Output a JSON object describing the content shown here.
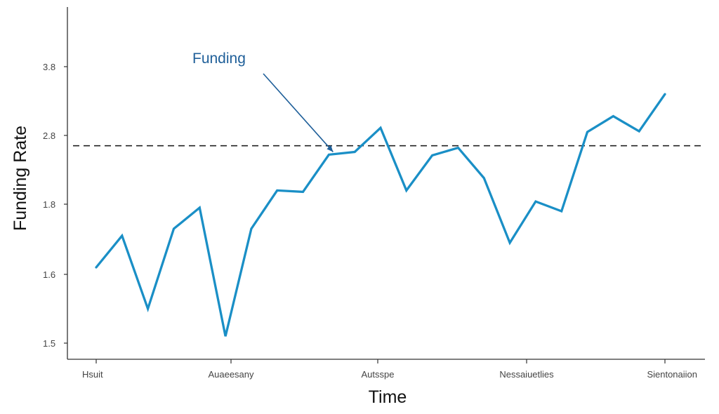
{
  "chart_data": {
    "type": "line",
    "title": "",
    "xlabel": "Time",
    "ylabel": "Funding Rate",
    "x_tick_labels": [
      "Hsuit",
      "Auaeesany",
      "Autsspe",
      "Nessaiuetlies",
      "Sientonaiion"
    ],
    "y_tick_labels": [
      "1.5",
      "1.6",
      "1.8",
      "2.8",
      "3.8"
    ],
    "ylim": [
      1.5,
      3.8
    ],
    "grid": false,
    "series": [
      {
        "name": "",
        "color": "#1a8fc6",
        "values": [
          1.62,
          1.71,
          1.55,
          1.73,
          1.79,
          1.51,
          1.73,
          2.0,
          1.98,
          2.52,
          2.56,
          2.91,
          2.0,
          2.51,
          2.62,
          2.18,
          1.69,
          1.84,
          1.78,
          2.85,
          3.08,
          2.86,
          3.4
        ]
      }
    ],
    "reference_line": {
      "value": 2.65,
      "style": "dashed",
      "color": "#222222"
    },
    "annotation": {
      "text": "Funding",
      "color": "#1f5f99",
      "target_index": 9
    }
  }
}
